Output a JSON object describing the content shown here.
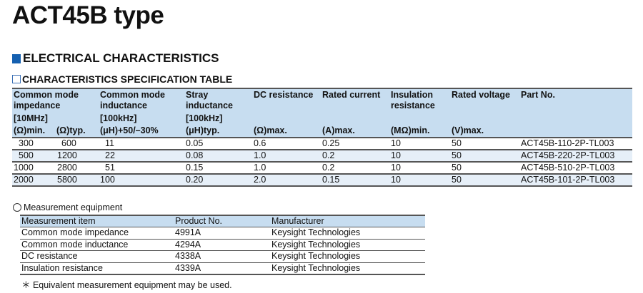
{
  "title": "ACT45B type",
  "section_title": "ELECTRICAL CHARACTERISTICS",
  "spec_table": {
    "title": "CHARACTERISTICS SPECIFICATION TABLE",
    "headers": {
      "impedance": "Common mode impedance",
      "impedance_cond": "[10MHz]",
      "impedance_min": "(Ω)min.",
      "impedance_typ": "(Ω)typ.",
      "inductance": "Common mode inductance",
      "inductance_cond": "[100kHz]",
      "inductance_unit": "(μH)+50/–30%",
      "stray": "Stray inductance",
      "stray_cond": "[100kHz]",
      "stray_unit": "(μH)typ.",
      "dc": "DC resistance",
      "dc_unit": "(Ω)max.",
      "current": "Rated current",
      "current_unit": "(A)max.",
      "insulation": "Insulation resistance",
      "insulation_unit": "(MΩ)min.",
      "voltage": "Rated voltage",
      "voltage_unit": "(V)max.",
      "part": "Part No."
    },
    "rows": [
      [
        "300",
        "600",
        "11",
        "0.05",
        "0.6",
        "0.25",
        "10",
        "50",
        "ACT45B-110-2P-TL003"
      ],
      [
        "500",
        "1200",
        "22",
        "0.08",
        "1.0",
        "0.2",
        "10",
        "50",
        "ACT45B-220-2P-TL003"
      ],
      [
        "1000",
        "2800",
        "51",
        "0.15",
        "1.0",
        "0.2",
        "10",
        "50",
        "ACT45B-510-2P-TL003"
      ],
      [
        "2000",
        "5800",
        "100",
        "0.20",
        "2.0",
        "0.15",
        "10",
        "50",
        "ACT45B-101-2P-TL003"
      ]
    ]
  },
  "measurement": {
    "title": "Measurement equipment",
    "headers": [
      "Measurement item",
      "Product No.",
      "Manufacturer"
    ],
    "rows": [
      [
        "Common mode impedance",
        "4991A",
        "Keysight Technologies"
      ],
      [
        "Common mode inductance",
        "4294A",
        "Keysight Technologies"
      ],
      [
        "DC resistance",
        "4338A",
        "Keysight Technologies"
      ],
      [
        "Insulation resistance",
        "4339A",
        "Keysight Technologies"
      ]
    ],
    "note": "＊ Equivalent measurement equipment may be used."
  },
  "colors": {
    "accent": "#1560b0",
    "header_bg": "#c7ddf0",
    "alt_row": "#e6eff8"
  }
}
